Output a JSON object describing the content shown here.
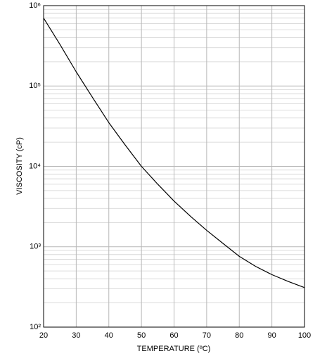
{
  "chart_data": {
    "type": "line",
    "x_label": "TEMPERATURE (ºC)",
    "y_label": "VISCOSITY (cP)",
    "x": [
      20,
      25,
      30,
      35,
      40,
      45,
      50,
      55,
      60,
      65,
      70,
      75,
      80,
      85,
      90,
      95,
      100
    ],
    "values": [
      700000,
      330000,
      150000,
      72000,
      35000,
      18500,
      10000,
      6000,
      3700,
      2400,
      1600,
      1100,
      760,
      570,
      450,
      370,
      310
    ],
    "color": "#000000",
    "xlim": [
      20,
      100
    ],
    "xticks": [
      20,
      30,
      40,
      50,
      60,
      70,
      80,
      90,
      100
    ],
    "ylim": [
      100,
      1000000
    ],
    "log_y": true,
    "yticks": [
      {
        "value": 100,
        "label": "10²"
      },
      {
        "value": 1000,
        "label": "10³"
      },
      {
        "value": 10000,
        "label": "10⁴"
      },
      {
        "value": 100000,
        "label": "10⁵"
      },
      {
        "value": 1000000,
        "label": "10⁶"
      }
    ],
    "grid": true
  }
}
